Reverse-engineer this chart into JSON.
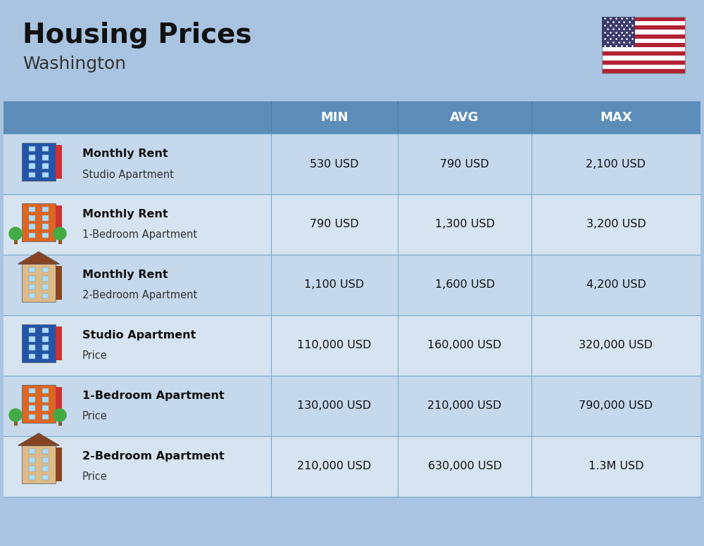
{
  "title": "Housing Prices",
  "subtitle": "Washington",
  "background_color": "#a8c4e0",
  "header_color": "#5b8db8",
  "header_text_color": "#ffffff",
  "row_bg_even": "#c5d8ec",
  "row_bg_odd": "#d5e4f0",
  "divider_color": "#7aaac8",
  "title_fontsize": 28,
  "subtitle_fontsize": 18,
  "header_labels": [
    "MIN",
    "AVG",
    "MAX"
  ],
  "rows": [
    {
      "icon_type": "studio_blue",
      "label_bold": "Monthly Rent",
      "label_sub": "Studio Apartment",
      "min": "530 USD",
      "avg": "790 USD",
      "max": "2,100 USD"
    },
    {
      "icon_type": "bedroom1_orange",
      "label_bold": "Monthly Rent",
      "label_sub": "1-Bedroom Apartment",
      "min": "790 USD",
      "avg": "1,300 USD",
      "max": "3,200 USD"
    },
    {
      "icon_type": "bedroom2_beige",
      "label_bold": "Monthly Rent",
      "label_sub": "2-Bedroom Apartment",
      "min": "1,100 USD",
      "avg": "1,600 USD",
      "max": "4,200 USD"
    },
    {
      "icon_type": "studio_blue2",
      "label_bold": "Studio Apartment",
      "label_sub": "Price",
      "min": "110,000 USD",
      "avg": "160,000 USD",
      "max": "320,000 USD"
    },
    {
      "icon_type": "bedroom1_orange2",
      "label_bold": "1-Bedroom Apartment",
      "label_sub": "Price",
      "min": "130,000 USD",
      "avg": "210,000 USD",
      "max": "790,000 USD"
    },
    {
      "icon_type": "bedroom2_brown",
      "label_bold": "2-Bedroom Apartment",
      "label_sub": "Price",
      "min": "210,000 USD",
      "avg": "630,000 USD",
      "max": "1.3M USD"
    }
  ],
  "icon_configs": {
    "studio_blue": {
      "main": "#2255aa",
      "accent": "#cc3333",
      "roof": null,
      "trees": false
    },
    "bedroom1_orange": {
      "main": "#dd6622",
      "accent": "#cc3333",
      "roof": null,
      "trees": true
    },
    "bedroom2_beige": {
      "main": "#ddbb88",
      "accent": "#884422",
      "roof": "#884422",
      "trees": false
    },
    "studio_blue2": {
      "main": "#2255aa",
      "accent": "#cc3333",
      "roof": null,
      "trees": false
    },
    "bedroom1_orange2": {
      "main": "#dd6622",
      "accent": "#cc3333",
      "roof": null,
      "trees": true
    },
    "bedroom2_brown": {
      "main": "#ddbb88",
      "accent": "#884422",
      "roof": "#884422",
      "trees": false
    }
  }
}
